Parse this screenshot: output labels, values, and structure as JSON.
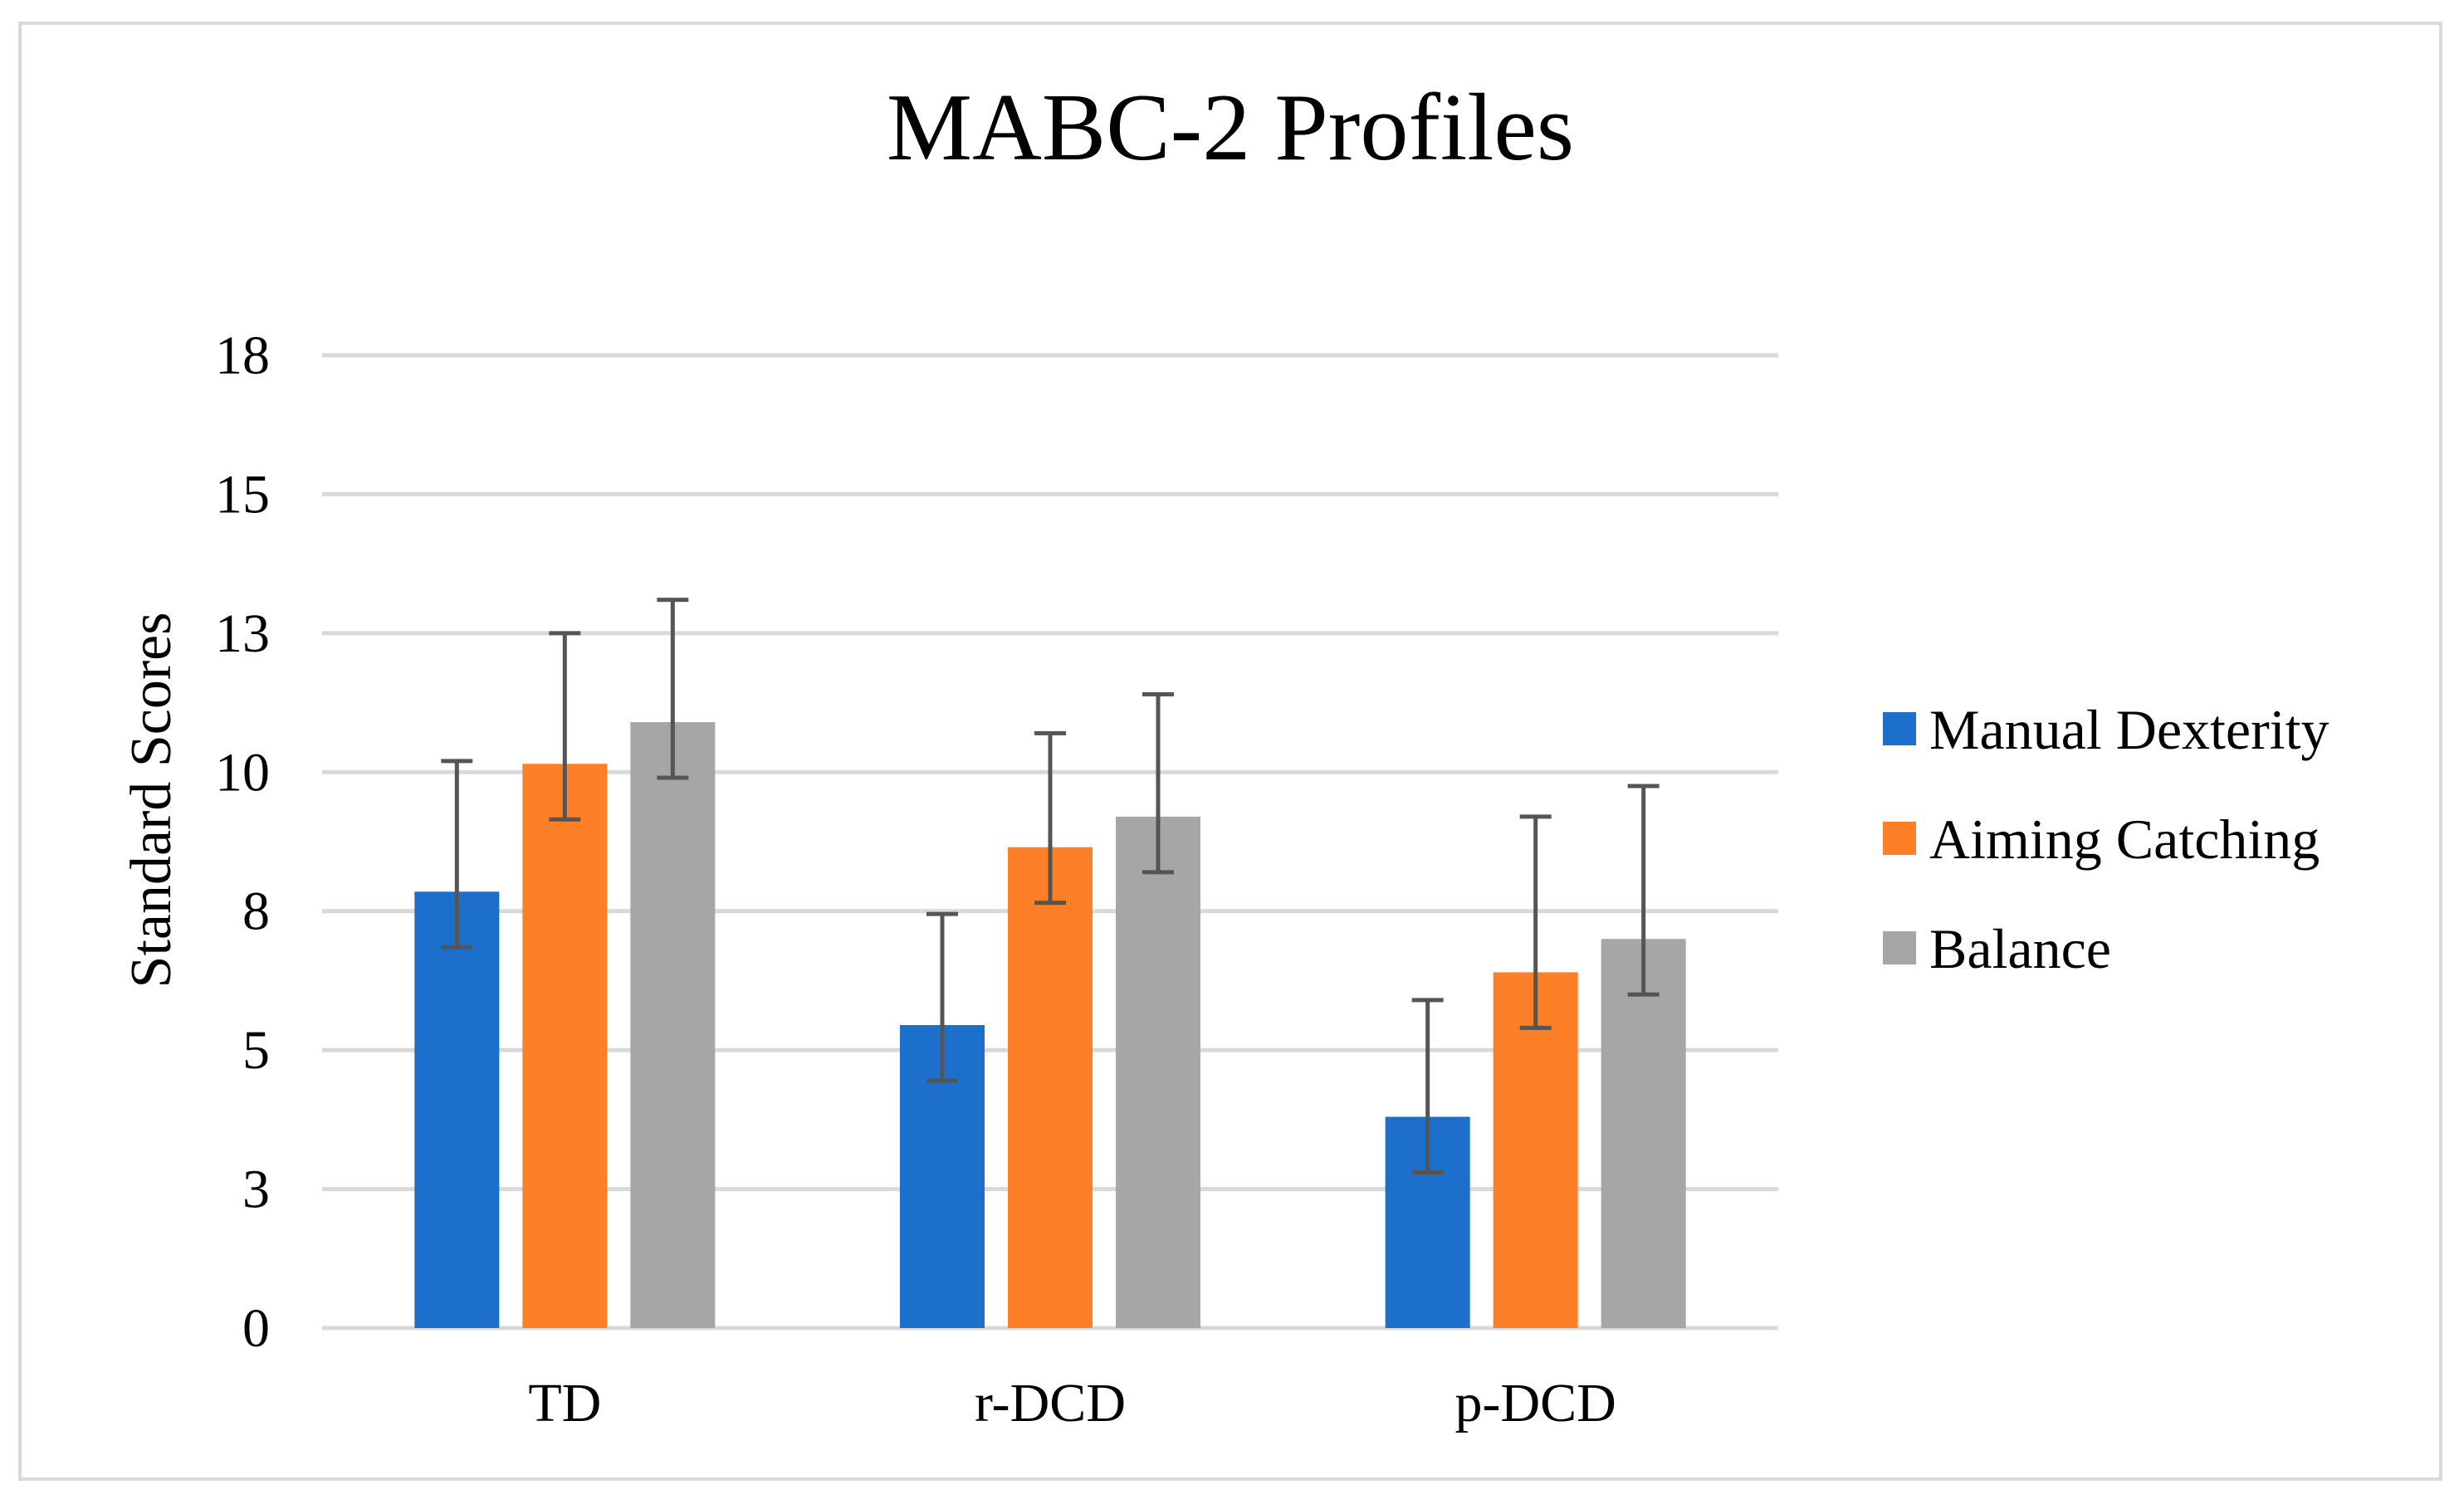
{
  "chart_data": {
    "type": "bar",
    "title": "MABC-2 Profiles",
    "xlabel": "",
    "ylabel": "Standard Scores",
    "ylim": [
      0,
      17.5
    ],
    "y_tick_values": [
      0,
      2.5,
      5,
      7.5,
      10,
      12.5,
      15,
      17.5
    ],
    "y_tick_labels": [
      "0",
      "3",
      "5",
      "8",
      "10",
      "13",
      "15",
      "18"
    ],
    "grid": true,
    "legend_position": "right",
    "categories": [
      "TD",
      "r-DCD",
      "p-DCD"
    ],
    "series": [
      {
        "name": "Manual Dexterity",
        "color": "#1c6fca",
        "values": [
          7.85,
          5.45,
          3.8
        ],
        "error_low": [
          6.85,
          4.45,
          2.8
        ],
        "error_high": [
          10.2,
          7.45,
          5.9
        ]
      },
      {
        "name": "Aiming Catching",
        "color": "#fd7f27",
        "values": [
          10.15,
          8.65,
          6.4
        ],
        "error_low": [
          9.15,
          7.65,
          5.4
        ],
        "error_high": [
          12.5,
          10.7,
          9.2
        ]
      },
      {
        "name": "Balance",
        "color": "#a6a6a6",
        "values": [
          10.9,
          9.2,
          7.0
        ],
        "error_low": [
          9.9,
          8.2,
          6.0
        ],
        "error_high": [
          13.1,
          11.4,
          9.75
        ]
      }
    ],
    "error_bar_color": "#555555",
    "gridline_color": "#d9d9d9"
  }
}
